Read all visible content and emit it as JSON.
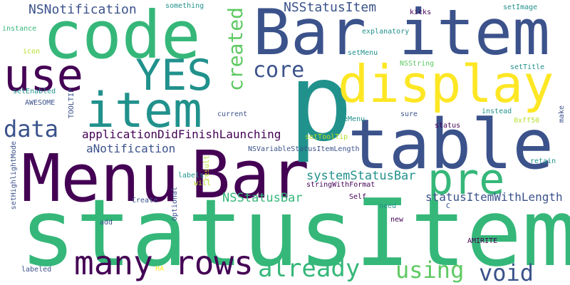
{
  "palette": {
    "dark_purple": "#440154",
    "indigo": "#3b528b",
    "teal": "#21918c",
    "green": "#35b779",
    "lime": "#5ec962",
    "yellow": "#fde725",
    "yellow_green": "#b5de2b"
  },
  "words": [
    {
      "id": "w0",
      "text": "statusItem",
      "color": "#35b779"
    },
    {
      "id": "w1",
      "text": "Menu",
      "color": "#440154"
    },
    {
      "id": "w2",
      "text": "Bar",
      "color": "#440154"
    },
    {
      "id": "w3",
      "text": "code",
      "color": "#35b779"
    },
    {
      "id": "w4",
      "text": "Bar",
      "color": "#3b528b"
    },
    {
      "id": "w5",
      "text": "item",
      "color": "#3b528b"
    },
    {
      "id": "w6",
      "text": "p",
      "color": "#21918c"
    },
    {
      "id": "w7",
      "text": "table",
      "color": "#3b528b"
    },
    {
      "id": "w8",
      "text": "display",
      "color": "#fde725"
    },
    {
      "id": "w9",
      "text": "item",
      "color": "#21918c"
    },
    {
      "id": "w10",
      "text": "use",
      "color": "#440154"
    },
    {
      "id": "w11",
      "text": "YES",
      "color": "#21918c"
    },
    {
      "id": "w12",
      "text": "pre",
      "color": "#35b779"
    },
    {
      "id": "w13",
      "text": "many",
      "color": "#440154"
    },
    {
      "id": "w14",
      "text": "rows",
      "color": "#440154"
    },
    {
      "id": "w15",
      "text": "already",
      "color": "#35b779"
    },
    {
      "id": "w16",
      "text": "using",
      "color": "#5ec962"
    },
    {
      "id": "w17",
      "text": "void",
      "color": "#3b528b"
    },
    {
      "id": "w18",
      "text": "data",
      "color": "#3b528b"
    },
    {
      "id": "w19",
      "text": "core",
      "color": "#3b528b"
    },
    {
      "id": "w20",
      "text": "created",
      "color": "#5ec962"
    },
    {
      "id": "w21",
      "text": "NSNotification",
      "color": "#3b528b"
    },
    {
      "id": "w22",
      "text": "NSStatusItem",
      "color": "#3b528b"
    },
    {
      "id": "w23",
      "text": "applicationDidFinishLaunching",
      "color": "#440154"
    },
    {
      "id": "w24",
      "text": "aNotification",
      "color": "#3b528b"
    },
    {
      "id": "w25",
      "text": "systemStatusBar",
      "color": "#21918c"
    },
    {
      "id": "w26",
      "text": "NSStatusBar",
      "color": "#35b779"
    },
    {
      "id": "w27",
      "text": "statusItemWithLength",
      "color": "#3b528b"
    },
    {
      "id": "w28",
      "text": "NSVariableStatusItemLength",
      "color": "#3b528b"
    },
    {
      "id": "w29",
      "text": "something",
      "color": "#21918c"
    },
    {
      "id": "w30",
      "text": "instance",
      "color": "#35b779"
    },
    {
      "id": "w31",
      "text": "icon",
      "color": "#b5de2b"
    },
    {
      "id": "w32",
      "text": "setEnabled",
      "color": "#21918c"
    },
    {
      "id": "w33",
      "text": "AWESOME",
      "color": "#3b528b"
    },
    {
      "id": "w34",
      "text": "TOOLTIP",
      "color": "#3b528b"
    },
    {
      "id": "w35",
      "text": "setHighlightMode",
      "color": "#3b528b"
    },
    {
      "id": "w36",
      "text": "explanatory",
      "color": "#21918c"
    },
    {
      "id": "w37",
      "text": "kicks",
      "color": "#440154"
    },
    {
      "id": "w38",
      "text": "setImage",
      "color": "#21918c"
    },
    {
      "id": "w39",
      "text": "setMenu",
      "color": "#21918c"
    },
    {
      "id": "w40",
      "text": "NSString",
      "color": "#5ec962"
    },
    {
      "id": "w41",
      "text": "setTitle",
      "color": "#21918c"
    },
    {
      "id": "w42",
      "text": "instead",
      "color": "#21918c"
    },
    {
      "id": "w43",
      "text": "theMenu",
      "color": "#21918c"
    },
    {
      "id": "w44",
      "text": "sure",
      "color": "#3b528b"
    },
    {
      "id": "w45",
      "text": "0xff50",
      "color": "#b5de2b"
    },
    {
      "id": "w46",
      "text": "status",
      "color": "#440154"
    },
    {
      "id": "w47",
      "text": "setToolTip",
      "color": "#b5de2b"
    },
    {
      "id": "w48",
      "text": "current",
      "color": "#3b528b"
    },
    {
      "id": "w49",
      "text": "make",
      "color": "#3b528b"
    },
    {
      "id": "w50",
      "text": "retain",
      "color": "#21918c"
    },
    {
      "id": "w51",
      "text": "result",
      "color": "#b5de2b"
    },
    {
      "id": "w52",
      "text": "labels",
      "color": "#21918c"
    },
    {
      "id": "w53",
      "text": "will",
      "color": "#b5de2b"
    },
    {
      "id": "w54",
      "text": "stringWithFormat",
      "color": "#440154"
    },
    {
      "id": "w55",
      "text": "Create",
      "color": "#3b528b"
    },
    {
      "id": "w56",
      "text": "Optional",
      "color": "#3b528b"
    },
    {
      "id": "w57",
      "text": "Self",
      "color": "#440154"
    },
    {
      "id": "w58",
      "text": "need",
      "color": "#21918c"
    },
    {
      "id": "w59",
      "text": "C",
      "color": "#3b528b"
    },
    {
      "id": "w60",
      "text": "add",
      "color": "#3b528b"
    },
    {
      "id": "w61",
      "text": "new",
      "color": "#440154"
    },
    {
      "id": "w62",
      "text": "AMIRITE",
      "color": "#440154"
    },
    {
      "id": "w63",
      "text": "labeled",
      "color": "#3b528b"
    },
    {
      "id": "w64",
      "text": "HA",
      "color": "#fde725"
    }
  ]
}
